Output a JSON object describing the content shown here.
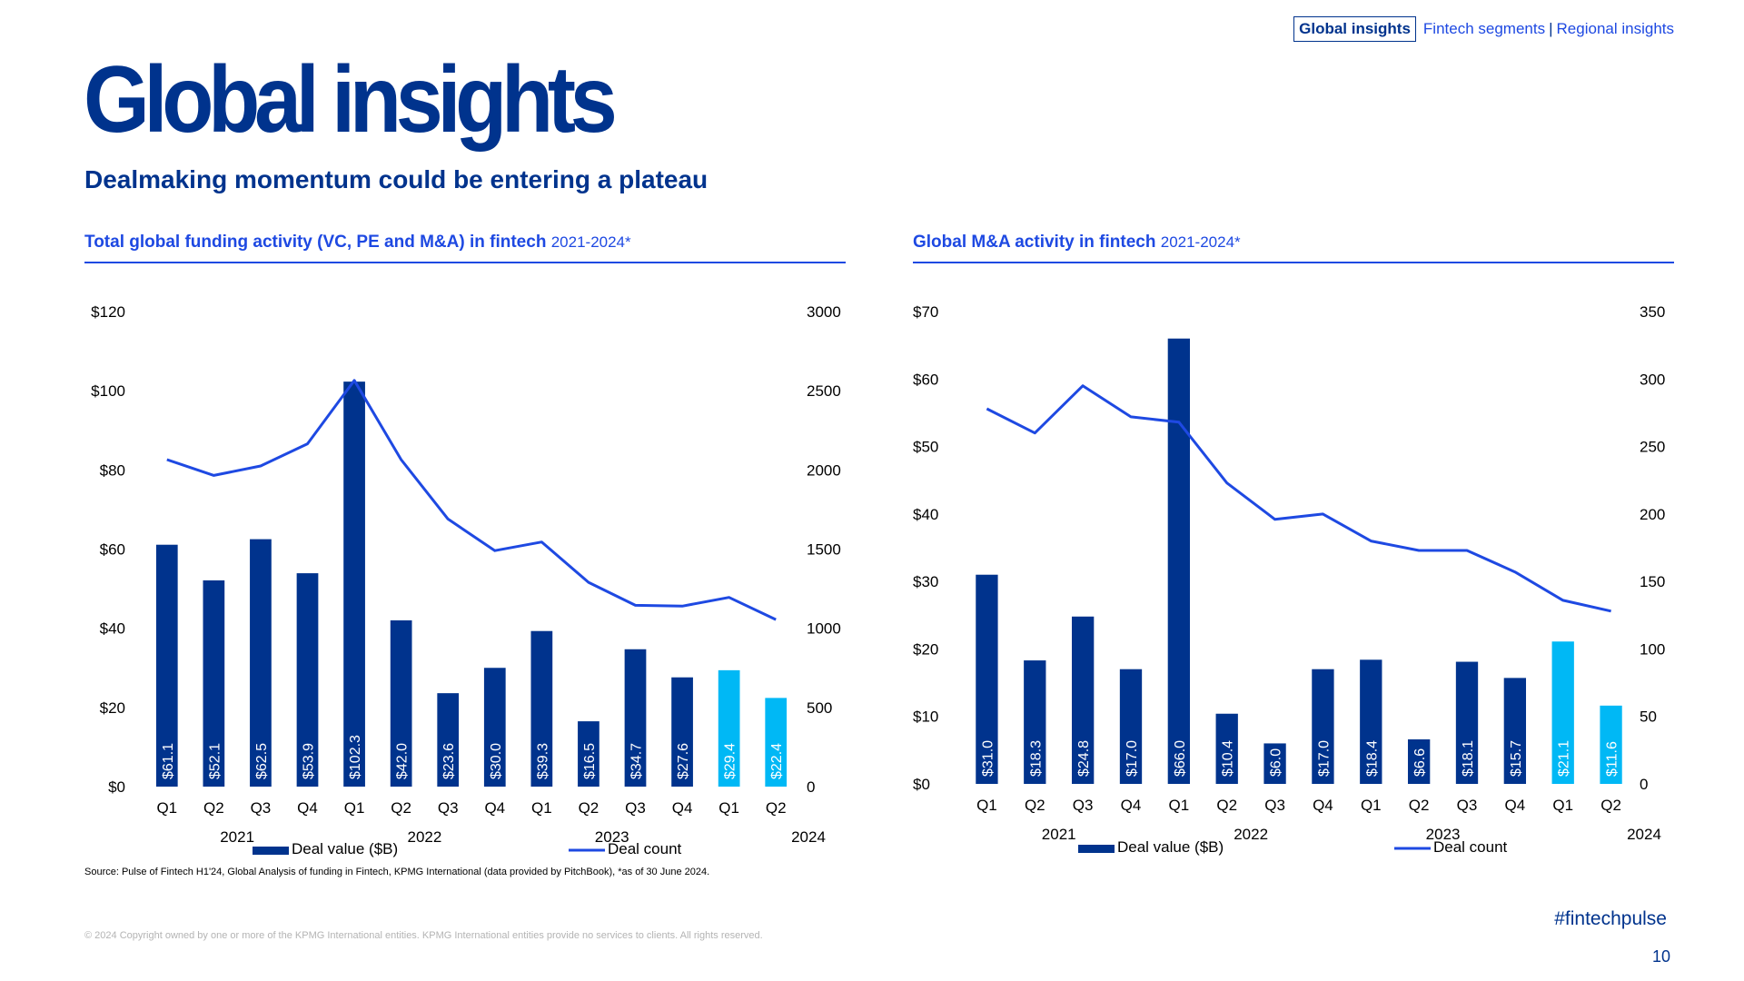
{
  "nav": {
    "active": "Global insights",
    "segments": "Fintech segments",
    "separator": "|",
    "regional": "Regional insights"
  },
  "page_title": "Global insights",
  "subtitle": "Dealmaking momentum could be entering a plateau",
  "colors": {
    "brand_dark": "#00338d",
    "line_blue": "#1e49e2",
    "bar_dark": "#00338d",
    "bar_light": "#00b8f5"
  },
  "chart_data": [
    {
      "type": "bar",
      "title": "Total global funding activity (VC, PE and M&A) in fintech",
      "title_range": "2021-2024*",
      "categories": [
        "Q1",
        "Q2",
        "Q3",
        "Q4",
        "Q1",
        "Q2",
        "Q3",
        "Q4",
        "Q1",
        "Q2",
        "Q3",
        "Q4",
        "Q1",
        "Q2"
      ],
      "year_groups": [
        "2021",
        "2022",
        "2023",
        "2024"
      ],
      "series": [
        {
          "name": "Deal value ($B)",
          "type": "bar",
          "axis": "left",
          "values": [
            61.1,
            52.1,
            62.5,
            53.9,
            102.3,
            42.0,
            23.6,
            30.0,
            39.3,
            16.5,
            34.7,
            27.6,
            29.4,
            22.4
          ],
          "labels": [
            "$61.1",
            "$52.1",
            "$62.5",
            "$53.9",
            "$102.3",
            "$42.0",
            "$23.6",
            "$30.0",
            "$39.3",
            "$16.5",
            "$34.7",
            "$27.6",
            "$29.4",
            "$22.4"
          ],
          "highlight_from_index": 12
        },
        {
          "name": "Deal count",
          "type": "line",
          "axis": "right",
          "values": [
            2065,
            1965,
            2025,
            2165,
            2565,
            2065,
            1690,
            1490,
            1545,
            1290,
            1145,
            1140,
            1195,
            1055
          ]
        }
      ],
      "ylim": [
        0,
        120
      ],
      "y2lim": [
        0,
        3000
      ],
      "yticks": [
        "$0",
        "$20",
        "$40",
        "$60",
        "$80",
        "$100",
        "$120"
      ],
      "y2ticks": [
        "0",
        "500",
        "1000",
        "1500",
        "2000",
        "2500",
        "3000"
      ]
    },
    {
      "type": "bar",
      "title": "Global M&A activity in fintech",
      "title_range": "2021-2024*",
      "categories": [
        "Q1",
        "Q2",
        "Q3",
        "Q4",
        "Q1",
        "Q2",
        "Q3",
        "Q4",
        "Q1",
        "Q2",
        "Q3",
        "Q4",
        "Q1",
        "Q2"
      ],
      "year_groups": [
        "2021",
        "2022",
        "2023",
        "2024"
      ],
      "series": [
        {
          "name": "Deal value ($B)",
          "type": "bar",
          "axis": "left",
          "values": [
            31.0,
            18.3,
            24.8,
            17.0,
            66.0,
            10.4,
            6.0,
            17.0,
            18.4,
            6.6,
            18.1,
            15.7,
            21.1,
            11.6
          ],
          "labels": [
            "$31.0",
            "$18.3",
            "$24.8",
            "$17.0",
            "$66.0",
            "$10.4",
            "$6.0",
            "$17.0",
            "$18.4",
            "$6.6",
            "$18.1",
            "$15.7",
            "$21.1",
            "$11.6"
          ],
          "highlight_from_index": 12
        },
        {
          "name": "Deal count",
          "type": "line",
          "axis": "right",
          "values": [
            278,
            260,
            295,
            272,
            268,
            223,
            196,
            200,
            180,
            173,
            173,
            157,
            136,
            128
          ]
        }
      ],
      "ylim": [
        0,
        70
      ],
      "y2lim": [
        0,
        350
      ],
      "yticks": [
        "$0",
        "$10",
        "$20",
        "$30",
        "$40",
        "$50",
        "$60",
        "$70"
      ],
      "y2ticks": [
        "0",
        "50",
        "100",
        "150",
        "200",
        "250",
        "300",
        "350"
      ]
    }
  ],
  "source": "Source: Pulse of Fintech H1'24, Global Analysis of funding in Fintech, KPMG International (data provided by PitchBook), *as of 30 June 2024.",
  "copyright": "© 2024 Copyright owned by one or more of the KPMG International entities. KPMG International entities provide no services to clients. All rights reserved.",
  "hashtag": "#fintechpulse",
  "page_number": "10"
}
